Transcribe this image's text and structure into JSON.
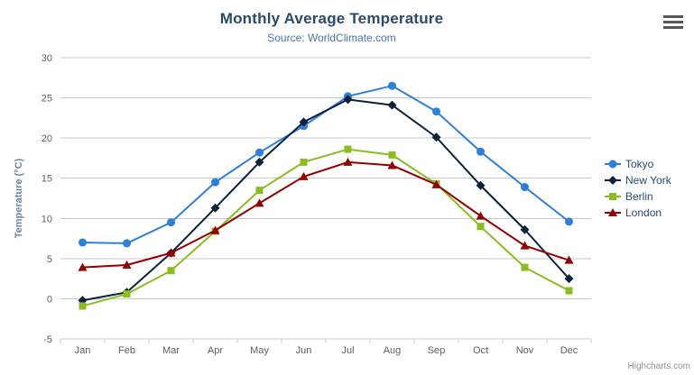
{
  "title": "Monthly Average Temperature",
  "subtitle": "Source: WorldClimate.com",
  "credits": "Highcharts.com",
  "context_menu": {
    "icon": "hamburger-icon"
  },
  "colors": {
    "title": "#274b6d",
    "subtitle": "#4d759e",
    "axis_labels": "#606060",
    "axis_title": "#6D869F",
    "gridline": "#C8C8C8",
    "axis_line": "#C0D0E0",
    "credits": "#909090"
  },
  "chart_data": {
    "type": "line",
    "title": "Monthly Average Temperature",
    "subtitle": "Source: WorldClimate.com",
    "categories": [
      "Jan",
      "Feb",
      "Mar",
      "Apr",
      "May",
      "Jun",
      "Jul",
      "Aug",
      "Sep",
      "Oct",
      "Nov",
      "Dec"
    ],
    "series": [
      {
        "name": "Tokyo",
        "color": "#2f7ed8",
        "marker": "circle",
        "values": [
          7.0,
          6.9,
          9.5,
          14.5,
          18.2,
          21.5,
          25.2,
          26.5,
          23.3,
          18.3,
          13.9,
          9.6
        ]
      },
      {
        "name": "New York",
        "color": "#0d233a",
        "marker": "diamond",
        "values": [
          -0.2,
          0.8,
          5.7,
          11.3,
          17.0,
          22.0,
          24.8,
          24.1,
          20.1,
          14.1,
          8.6,
          2.5
        ]
      },
      {
        "name": "Berlin",
        "color": "#8bbc21",
        "marker": "square",
        "values": [
          -0.9,
          0.6,
          3.5,
          8.4,
          13.5,
          17.0,
          18.6,
          17.9,
          14.3,
          9.0,
          3.9,
          1.0
        ]
      },
      {
        "name": "London",
        "color": "#910000",
        "marker": "triangle",
        "values": [
          3.9,
          4.2,
          5.7,
          8.5,
          11.9,
          15.2,
          17.0,
          16.6,
          14.2,
          10.3,
          6.6,
          4.8
        ]
      }
    ],
    "xlabel": "",
    "ylabel": "Temperature (°C)",
    "ylim": [
      -5,
      30
    ],
    "ytick_step": 5,
    "yticks": [
      -5,
      0,
      5,
      10,
      15,
      20,
      25,
      30
    ],
    "grid": true,
    "legend_position": "right"
  }
}
